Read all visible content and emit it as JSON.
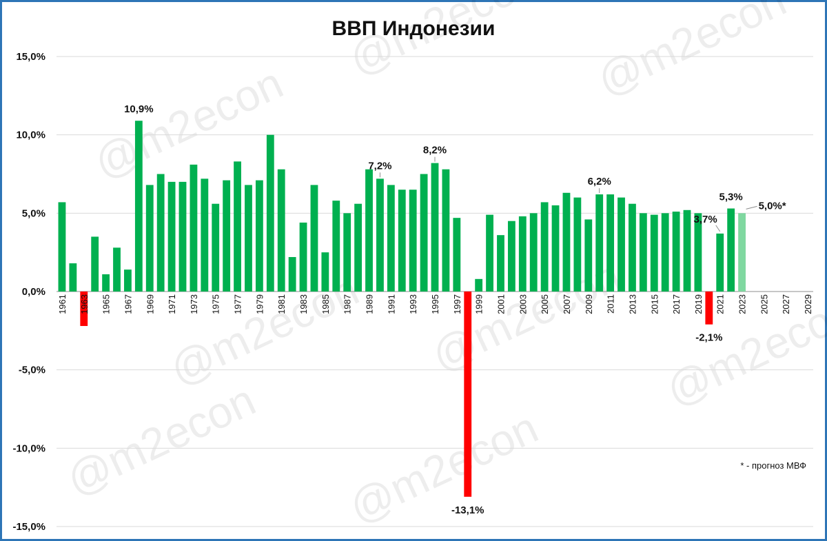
{
  "chart_data": {
    "type": "bar",
    "title": "ВВП Индонезии",
    "xlabel": "",
    "ylabel": "",
    "ylim": [
      -15,
      15
    ],
    "y_ticks": [
      "15,0%",
      "10,0%",
      "5,0%",
      "0,0%",
      "-5,0%",
      "-10,0%",
      "-15,0%"
    ],
    "grid": true,
    "x_tick_labels": [
      "1961",
      "1963",
      "1965",
      "1967",
      "1969",
      "1971",
      "1973",
      "1975",
      "1977",
      "1979",
      "1981",
      "1983",
      "1985",
      "1987",
      "1989",
      "1991",
      "1993",
      "1995",
      "1997",
      "1999",
      "2001",
      "2003",
      "2005",
      "2007",
      "2009",
      "2011",
      "2013",
      "2015",
      "2017",
      "2019",
      "2021",
      "2023",
      "2025",
      "2027",
      "2029"
    ],
    "categories": [
      "1961",
      "1962",
      "1963",
      "1964",
      "1965",
      "1966",
      "1967",
      "1968",
      "1969",
      "1970",
      "1971",
      "1972",
      "1973",
      "1974",
      "1975",
      "1976",
      "1977",
      "1978",
      "1979",
      "1980",
      "1981",
      "1982",
      "1983",
      "1984",
      "1985",
      "1986",
      "1987",
      "1988",
      "1989",
      "1990",
      "1991",
      "1992",
      "1993",
      "1994",
      "1995",
      "1996",
      "1997",
      "1998",
      "1999",
      "2000",
      "2001",
      "2002",
      "2003",
      "2004",
      "2005",
      "2006",
      "2007",
      "2008",
      "2009",
      "2010",
      "2011",
      "2012",
      "2013",
      "2014",
      "2015",
      "2016",
      "2017",
      "2018",
      "2019",
      "2020",
      "2021",
      "2022",
      "2023",
      "2024",
      "2025",
      "2026",
      "2027",
      "2028",
      "2029"
    ],
    "values": [
      5.7,
      1.8,
      -2.2,
      3.5,
      1.1,
      2.8,
      1.4,
      10.9,
      6.8,
      7.5,
      7.0,
      7.0,
      8.1,
      7.2,
      5.6,
      7.1,
      8.3,
      6.8,
      7.1,
      10.0,
      7.8,
      2.2,
      4.4,
      6.8,
      2.5,
      5.8,
      5.0,
      5.6,
      7.8,
      7.2,
      6.8,
      6.5,
      6.5,
      7.5,
      8.2,
      7.8,
      4.7,
      -13.1,
      0.8,
      4.9,
      3.6,
      4.5,
      4.8,
      5.0,
      5.7,
      5.5,
      6.3,
      6.0,
      4.6,
      6.2,
      6.2,
      6.0,
      5.6,
      5.0,
      4.9,
      5.0,
      5.1,
      5.2,
      5.0,
      -2.1,
      3.7,
      5.3,
      5.0,
      null,
      null,
      null,
      null,
      null,
      null
    ],
    "forecast_years": [
      "2023"
    ],
    "data_labels": [
      {
        "year": "1968",
        "text": "10,9%"
      },
      {
        "year": "1990",
        "text": "7,2%"
      },
      {
        "year": "1995",
        "text": "8,2%"
      },
      {
        "year": "1998",
        "text": "-13,1%"
      },
      {
        "year": "2010",
        "text": "6,2%"
      },
      {
        "year": "2020",
        "text": "-2,1%"
      },
      {
        "year": "2021",
        "text": "3,7%"
      },
      {
        "year": "2022",
        "text": "5,3%"
      },
      {
        "year": "2023",
        "text": "5,0%*"
      }
    ],
    "colors": {
      "positive": "#00b050",
      "negative": "#ff0000",
      "forecast": "#7fd8a0",
      "grid": "#d9d9d9",
      "border": "#2e75b6"
    },
    "note": "* - прогноз МВФ",
    "watermark": "@m2econ"
  }
}
